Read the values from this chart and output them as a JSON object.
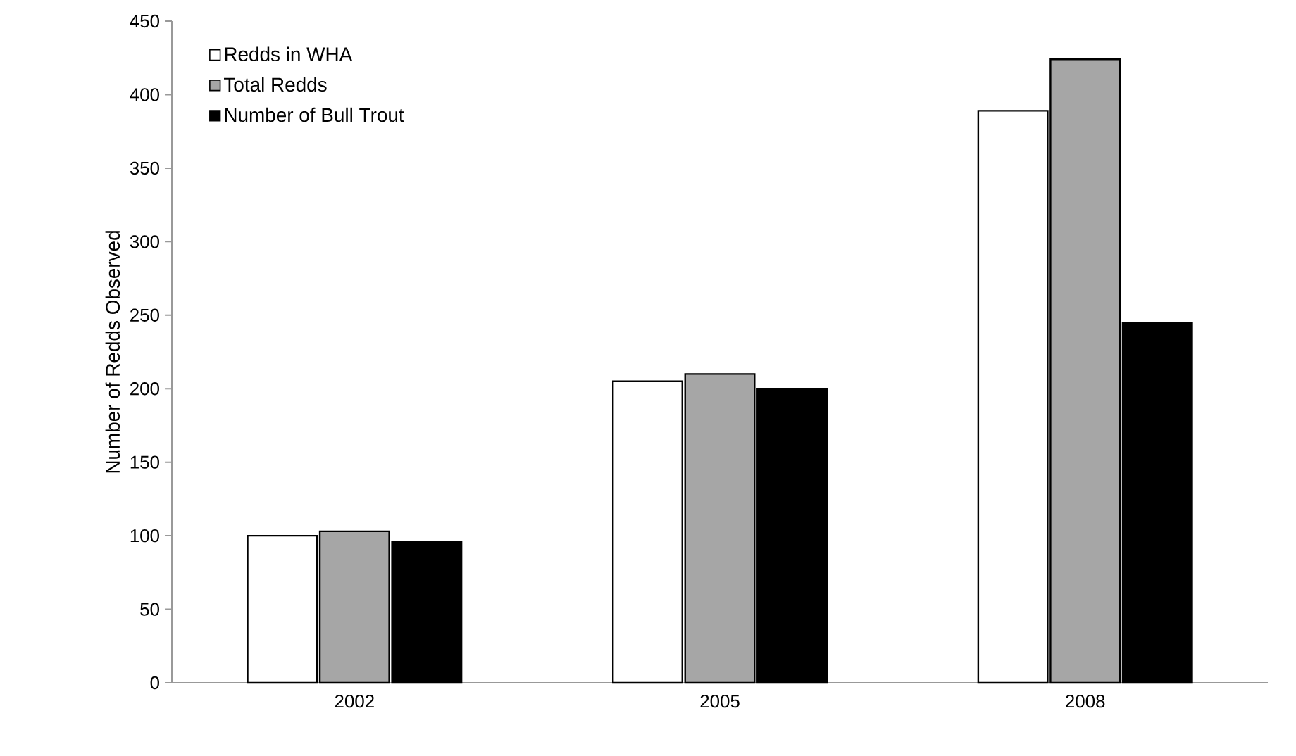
{
  "chart_data": {
    "type": "bar",
    "ylabel": "Number of Redds Observed",
    "categories": [
      "2002",
      "2005",
      "2008"
    ],
    "series": [
      {
        "name": "Redds in WHA",
        "color": "#ffffff",
        "values": [
          100,
          205,
          389
        ]
      },
      {
        "name": "Total Redds",
        "color": "#a6a6a6",
        "values": [
          103,
          210,
          424
        ]
      },
      {
        "name": "Number of Bull Trout",
        "color": "#000000",
        "values": [
          96,
          200,
          245
        ]
      }
    ],
    "ylim": [
      0,
      450
    ],
    "yticks": [
      0,
      50,
      100,
      150,
      200,
      250,
      300,
      350,
      400,
      450
    ],
    "grid": false,
    "legend": "top left"
  }
}
